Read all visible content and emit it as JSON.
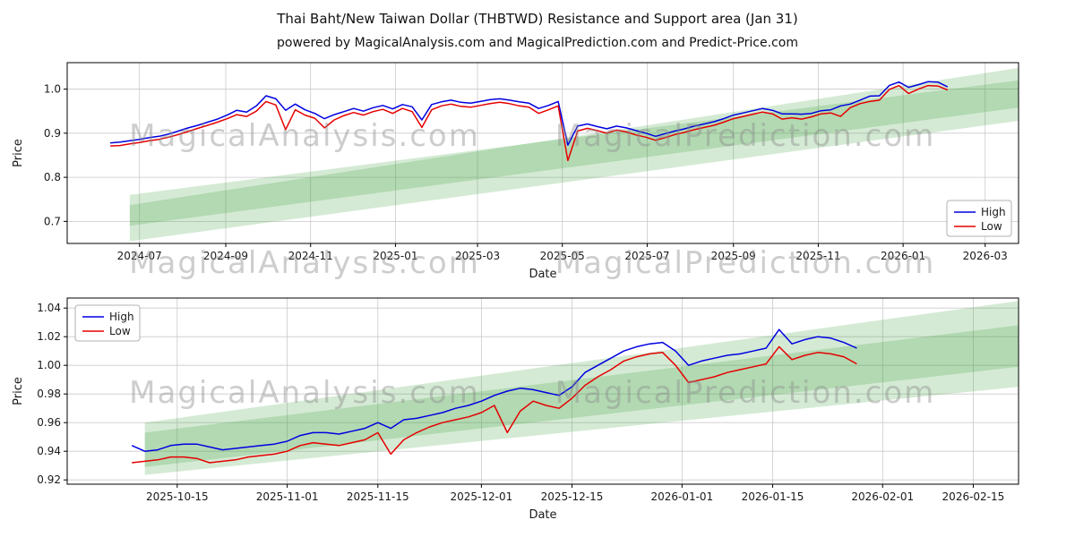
{
  "figure": {
    "title": "Thai Baht/New Taiwan Dollar (THBTWD) Resistance and Support area (Jan 31)",
    "subtitle": "powered by MagicalAnalysis.com and MagicalPrediction.com and Predict-Price.com",
    "watermarks": [
      "MagicalAnalysis.com",
      "MagicalPrediction.com"
    ],
    "colors": {
      "high": "#0000e0",
      "low": "#e60000",
      "band": "#3c9e3c",
      "grid": "#c9c9c9",
      "spine": "#000000",
      "tick_text": "#1a1a1a",
      "watermark": "#8a8a8a"
    }
  },
  "chart_data": [
    {
      "type": "line",
      "name": "full-history",
      "xlabel": "Date",
      "ylabel": "Price",
      "xlim": [
        "2024-05-10",
        "2026-03-25"
      ],
      "ylim": [
        0.65,
        1.06
      ],
      "grid": true,
      "legend_position": "lower-right",
      "y_ticks": [
        0.7,
        0.8,
        0.9,
        1.0
      ],
      "y_tick_decimals": 1,
      "x_ticks": [
        {
          "date": "2024-07-01",
          "label": "2024-07"
        },
        {
          "date": "2024-09-01",
          "label": "2024-09"
        },
        {
          "date": "2024-11-01",
          "label": "2024-11"
        },
        {
          "date": "2025-01-01",
          "label": "2025-01"
        },
        {
          "date": "2025-03-01",
          "label": "2025-03"
        },
        {
          "date": "2025-05-01",
          "label": "2025-05"
        },
        {
          "date": "2025-07-01",
          "label": "2025-07"
        },
        {
          "date": "2025-09-01",
          "label": "2025-09"
        },
        {
          "date": "2025-11-01",
          "label": "2025-11"
        },
        {
          "date": "2026-01-01",
          "label": "2026-01"
        },
        {
          "date": "2026-03-01",
          "label": "2026-03"
        }
      ],
      "bands": [
        {
          "x0": "2024-06-24",
          "x1": "2026-03-25",
          "y0": [
            0.655,
            0.76
          ],
          "y1": [
            0.928,
            1.02
          ]
        },
        {
          "x0": "2024-06-24",
          "x1": "2026-03-25",
          "y0": [
            0.69,
            0.737
          ],
          "y1": [
            0.958,
            1.048
          ]
        }
      ],
      "x": [
        "2024-06-10",
        "2024-06-17",
        "2024-06-24",
        "2024-07-01",
        "2024-07-08",
        "2024-07-15",
        "2024-07-22",
        "2024-07-29",
        "2024-08-05",
        "2024-08-12",
        "2024-08-19",
        "2024-08-26",
        "2024-09-02",
        "2024-09-09",
        "2024-09-16",
        "2024-09-23",
        "2024-09-30",
        "2024-10-07",
        "2024-10-14",
        "2024-10-21",
        "2024-10-28",
        "2024-11-04",
        "2024-11-11",
        "2024-11-18",
        "2024-11-25",
        "2024-12-02",
        "2024-12-09",
        "2024-12-16",
        "2024-12-23",
        "2024-12-30",
        "2025-01-06",
        "2025-01-13",
        "2025-01-20",
        "2025-01-27",
        "2025-02-03",
        "2025-02-10",
        "2025-02-17",
        "2025-02-24",
        "2025-03-03",
        "2025-03-10",
        "2025-03-17",
        "2025-03-24",
        "2025-03-31",
        "2025-04-07",
        "2025-04-14",
        "2025-04-21",
        "2025-04-28",
        "2025-05-05",
        "2025-05-12",
        "2025-05-19",
        "2025-05-26",
        "2025-06-02",
        "2025-06-09",
        "2025-06-16",
        "2025-06-23",
        "2025-06-30",
        "2025-07-07",
        "2025-07-14",
        "2025-07-21",
        "2025-07-28",
        "2025-08-04",
        "2025-08-11",
        "2025-08-18",
        "2025-08-25",
        "2025-09-01",
        "2025-09-08",
        "2025-09-15",
        "2025-09-22",
        "2025-09-29",
        "2025-10-06",
        "2025-10-13",
        "2025-10-20",
        "2025-10-27",
        "2025-11-03",
        "2025-11-10",
        "2025-11-17",
        "2025-11-24",
        "2025-12-01",
        "2025-12-08",
        "2025-12-15",
        "2025-12-22",
        "2025-12-29",
        "2026-01-05",
        "2026-01-12",
        "2026-01-19",
        "2026-01-26",
        "2026-02-02"
      ],
      "series": [
        {
          "name": "High",
          "color": "#0000e0",
          "values": [
            0.878,
            0.88,
            0.883,
            0.886,
            0.89,
            0.893,
            0.898,
            0.905,
            0.912,
            0.918,
            0.925,
            0.932,
            0.941,
            0.952,
            0.948,
            0.962,
            0.985,
            0.978,
            0.952,
            0.966,
            0.953,
            0.945,
            0.933,
            0.942,
            0.949,
            0.956,
            0.95,
            0.958,
            0.963,
            0.955,
            0.965,
            0.96,
            0.93,
            0.965,
            0.971,
            0.975,
            0.97,
            0.968,
            0.972,
            0.976,
            0.978,
            0.975,
            0.971,
            0.968,
            0.956,
            0.963,
            0.972,
            0.873,
            0.916,
            0.921,
            0.915,
            0.91,
            0.916,
            0.912,
            0.906,
            0.9,
            0.893,
            0.899,
            0.905,
            0.91,
            0.916,
            0.921,
            0.926,
            0.933,
            0.941,
            0.946,
            0.951,
            0.956,
            0.952,
            0.944,
            0.944,
            0.943,
            0.945,
            0.951,
            0.953,
            0.962,
            0.966,
            0.975,
            0.984,
            0.985,
            1.008,
            1.016,
            1.004,
            1.01,
            1.017,
            1.016,
            1.005
          ]
        },
        {
          "name": "Low",
          "color": "#e60000",
          "values": [
            0.871,
            0.872,
            0.876,
            0.879,
            0.883,
            0.886,
            0.891,
            0.897,
            0.904,
            0.911,
            0.918,
            0.925,
            0.933,
            0.942,
            0.938,
            0.95,
            0.972,
            0.964,
            0.908,
            0.953,
            0.941,
            0.934,
            0.912,
            0.93,
            0.94,
            0.947,
            0.941,
            0.949,
            0.954,
            0.945,
            0.956,
            0.949,
            0.913,
            0.953,
            0.962,
            0.966,
            0.961,
            0.959,
            0.963,
            0.967,
            0.97,
            0.967,
            0.962,
            0.959,
            0.945,
            0.953,
            0.962,
            0.838,
            0.905,
            0.911,
            0.906,
            0.9,
            0.907,
            0.903,
            0.896,
            0.891,
            0.884,
            0.89,
            0.897,
            0.902,
            0.908,
            0.913,
            0.918,
            0.925,
            0.933,
            0.938,
            0.943,
            0.948,
            0.944,
            0.932,
            0.935,
            0.932,
            0.937,
            0.944,
            0.946,
            0.938,
            0.958,
            0.967,
            0.972,
            0.975,
            0.999,
            1.008,
            0.99,
            1.0,
            1.008,
            1.007,
            0.998
          ]
        }
      ]
    },
    {
      "type": "line",
      "name": "recent-zoom",
      "xlabel": "Date",
      "ylabel": "Price",
      "xlim": [
        "2025-09-28",
        "2026-02-22"
      ],
      "ylim": [
        0.917,
        1.047
      ],
      "grid": true,
      "legend_position": "upper-left",
      "y_ticks": [
        0.92,
        0.94,
        0.96,
        0.98,
        1.0,
        1.02,
        1.04
      ],
      "y_tick_decimals": 2,
      "x_ticks": [
        {
          "date": "2025-10-15",
          "label": "2025-10-15"
        },
        {
          "date": "2025-11-01",
          "label": "2025-11-01"
        },
        {
          "date": "2025-11-15",
          "label": "2025-11-15"
        },
        {
          "date": "2025-12-01",
          "label": "2025-12-01"
        },
        {
          "date": "2025-12-15",
          "label": "2025-12-15"
        },
        {
          "date": "2026-01-01",
          "label": "2026-01-01"
        },
        {
          "date": "2026-01-15",
          "label": "2026-01-15"
        },
        {
          "date": "2026-02-01",
          "label": "2026-02-01"
        },
        {
          "date": "2026-02-15",
          "label": "2026-02-15"
        }
      ],
      "bands": [
        {
          "x0": "2025-10-10",
          "x1": "2026-02-22",
          "y0": [
            0.9235,
            0.953
          ],
          "y1": [
            0.985,
            1.028
          ]
        },
        {
          "x0": "2025-10-10",
          "x1": "2026-02-22",
          "y0": [
            0.929,
            0.96
          ],
          "y1": [
            0.999,
            1.045
          ]
        }
      ],
      "x": [
        "2025-10-08",
        "2025-10-10",
        "2025-10-12",
        "2025-10-14",
        "2025-10-16",
        "2025-10-18",
        "2025-10-20",
        "2025-10-22",
        "2025-10-24",
        "2025-10-26",
        "2025-10-28",
        "2025-10-30",
        "2025-11-01",
        "2025-11-03",
        "2025-11-05",
        "2025-11-07",
        "2025-11-09",
        "2025-11-11",
        "2025-11-13",
        "2025-11-15",
        "2025-11-17",
        "2025-11-19",
        "2025-11-21",
        "2025-11-23",
        "2025-11-25",
        "2025-11-27",
        "2025-11-29",
        "2025-12-01",
        "2025-12-03",
        "2025-12-05",
        "2025-12-07",
        "2025-12-09",
        "2025-12-11",
        "2025-12-13",
        "2025-12-15",
        "2025-12-17",
        "2025-12-19",
        "2025-12-21",
        "2025-12-23",
        "2025-12-25",
        "2025-12-27",
        "2025-12-29",
        "2025-12-31",
        "2026-01-02",
        "2026-01-04",
        "2026-01-06",
        "2026-01-08",
        "2026-01-10",
        "2026-01-12",
        "2026-01-14",
        "2026-01-16",
        "2026-01-18",
        "2026-01-20",
        "2026-01-22",
        "2026-01-24",
        "2026-01-26",
        "2026-01-28"
      ],
      "series": [
        {
          "name": "High",
          "color": "#0000e0",
          "values": [
            0.944,
            0.94,
            0.941,
            0.944,
            0.945,
            0.945,
            0.943,
            0.941,
            0.942,
            0.943,
            0.944,
            0.945,
            0.947,
            0.951,
            0.953,
            0.953,
            0.952,
            0.954,
            0.956,
            0.96,
            0.956,
            0.962,
            0.963,
            0.965,
            0.967,
            0.97,
            0.972,
            0.975,
            0.979,
            0.982,
            0.984,
            0.983,
            0.981,
            0.979,
            0.985,
            0.995,
            1.0,
            1.005,
            1.01,
            1.013,
            1.015,
            1.016,
            1.01,
            1.0,
            1.003,
            1.005,
            1.007,
            1.008,
            1.01,
            1.012,
            1.025,
            1.015,
            1.018,
            1.02,
            1.019,
            1.016,
            1.012
          ]
        },
        {
          "name": "Low",
          "color": "#e60000",
          "values": [
            0.932,
            0.933,
            0.934,
            0.936,
            0.936,
            0.935,
            0.932,
            0.933,
            0.934,
            0.936,
            0.937,
            0.938,
            0.94,
            0.944,
            0.946,
            0.945,
            0.944,
            0.946,
            0.948,
            0.953,
            0.938,
            0.948,
            0.953,
            0.957,
            0.96,
            0.962,
            0.964,
            0.967,
            0.972,
            0.953,
            0.968,
            0.975,
            0.972,
            0.97,
            0.977,
            0.986,
            0.992,
            0.997,
            1.003,
            1.006,
            1.008,
            1.009,
            1.0,
            0.988,
            0.99,
            0.992,
            0.995,
            0.997,
            0.999,
            1.001,
            1.013,
            1.004,
            1.007,
            1.009,
            1.008,
            1.006,
            1.001
          ]
        }
      ]
    }
  ]
}
